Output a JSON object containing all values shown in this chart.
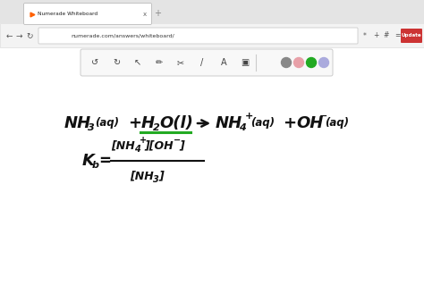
{
  "bg_color": "#ffffff",
  "tab_text": "Numerade Whiteboard",
  "url_text": "numerade.com/answers/whiteboard/",
  "update_btn_color": "#cc3333",
  "update_btn_text": "Update",
  "update_btn_text_color": "#ffffff",
  "eq_color": "#111111",
  "underline_color": "#22aa22",
  "toolbar_circle_colors": [
    "#888888",
    "#e8a0a8",
    "#22aa22",
    "#aaaadd"
  ],
  "figsize": [
    4.74,
    3.38
  ],
  "dpi": 100
}
